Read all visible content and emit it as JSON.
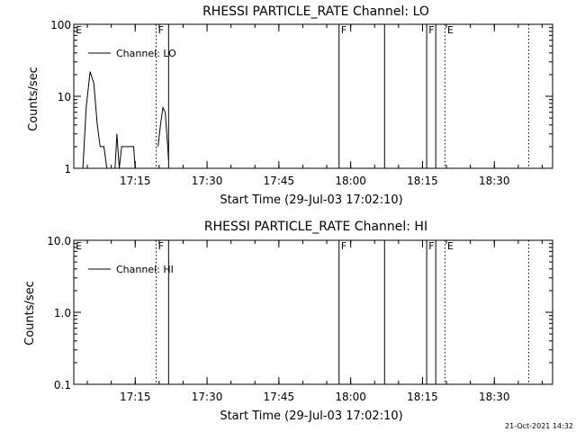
{
  "timestamp": "21-Oct-2021 14:32",
  "chart_data": [
    {
      "type": "line",
      "title": "RHESSI PARTICLE_RATE Channel: LO",
      "xlabel": "Start Time (29-Jul-03 17:02:10)",
      "ylabel": "Counts/sec",
      "yscale": "log",
      "ylim": [
        1,
        100
      ],
      "yticks": [
        1,
        10,
        100
      ],
      "ytick_labels": [
        "1",
        "10",
        "100"
      ],
      "xlim_minutes": [
        0,
        100
      ],
      "xticks_minutes": [
        12.83,
        27.83,
        42.83,
        57.83,
        72.83,
        87.83
      ],
      "xtick_labels": [
        "17:15",
        "17:30",
        "17:45",
        "18:00",
        "18:15",
        "18:30"
      ],
      "legend": {
        "label": "Channel: LO",
        "position": "top-left"
      },
      "markers": [
        {
          "label": "E",
          "x": 0,
          "style": "solid",
          "show_label": true
        },
        {
          "label": "F",
          "x": 17.2,
          "style": "dotted",
          "show_label": true
        },
        {
          "label": "",
          "x": 19.8,
          "style": "solid",
          "show_label": false
        },
        {
          "label": "F",
          "x": 55.4,
          "style": "solid",
          "show_label": false
        },
        {
          "label": "",
          "x": 64.9,
          "style": "solid",
          "show_label": false
        },
        {
          "label": "F",
          "x": 73.7,
          "style": "solid",
          "show_label": false
        },
        {
          "label": "",
          "x": 75.6,
          "style": "solid",
          "show_label": false
        },
        {
          "label": "E",
          "x": 77.5,
          "style": "dotted",
          "show_label": true
        },
        {
          "label": "",
          "x": 95.0,
          "style": "dotted",
          "show_label": false
        }
      ],
      "marker_labels": [
        {
          "text": "E",
          "x": 0.4
        },
        {
          "text": "F",
          "x": 17.6
        },
        {
          "text": "F",
          "x": 55.8
        },
        {
          "text": "F",
          "x": 74.1
        },
        {
          "text": "E",
          "x": 78.0
        }
      ],
      "series": [
        {
          "name": "Channel: LO",
          "segments": [
            [
              [
                1.9,
                1
              ],
              [
                2.6,
                7
              ],
              [
                3.4,
                22
              ],
              [
                4.2,
                15
              ],
              [
                4.9,
                4
              ],
              [
                5.5,
                2
              ],
              [
                6.3,
                2
              ],
              [
                6.9,
                1
              ]
            ],
            [
              [
                8.6,
                1
              ],
              [
                9.0,
                3
              ],
              [
                9.5,
                1
              ],
              [
                10.0,
                2
              ],
              [
                12.5,
                2
              ],
              [
                12.8,
                1
              ]
            ],
            [
              [
                17.6,
                2
              ],
              [
                18.1,
                4
              ],
              [
                18.6,
                7
              ],
              [
                19.1,
                6
              ],
              [
                19.6,
                2
              ],
              [
                19.8,
                1.3
              ]
            ]
          ]
        }
      ]
    },
    {
      "type": "line",
      "title": "RHESSI PARTICLE_RATE Channel: HI",
      "xlabel": "Start Time (29-Jul-03 17:02:10)",
      "ylabel": "Counts/sec",
      "yscale": "log",
      "ylim": [
        0.1,
        10
      ],
      "yticks": [
        0.1,
        1,
        10
      ],
      "ytick_labels": [
        "0.1",
        "1.0",
        "10.0"
      ],
      "xlim_minutes": [
        0,
        100
      ],
      "xticks_minutes": [
        12.83,
        27.83,
        42.83,
        57.83,
        72.83,
        87.83
      ],
      "xtick_labels": [
        "17:15",
        "17:30",
        "17:45",
        "18:00",
        "18:15",
        "18:30"
      ],
      "legend": {
        "label": "Channel: HI",
        "position": "top-left"
      },
      "markers": [
        {
          "label": "E",
          "x": 0,
          "style": "solid",
          "show_label": true
        },
        {
          "label": "F",
          "x": 17.2,
          "style": "dotted",
          "show_label": true
        },
        {
          "label": "",
          "x": 19.8,
          "style": "solid",
          "show_label": false
        },
        {
          "label": "F",
          "x": 55.4,
          "style": "solid",
          "show_label": false
        },
        {
          "label": "",
          "x": 64.9,
          "style": "solid",
          "show_label": false
        },
        {
          "label": "F",
          "x": 73.7,
          "style": "solid",
          "show_label": false
        },
        {
          "label": "",
          "x": 75.6,
          "style": "solid",
          "show_label": false
        },
        {
          "label": "E",
          "x": 77.5,
          "style": "dotted",
          "show_label": true
        },
        {
          "label": "",
          "x": 95.0,
          "style": "dotted",
          "show_label": false
        }
      ],
      "marker_labels": [
        {
          "text": "E",
          "x": 0.4
        },
        {
          "text": "F",
          "x": 17.6
        },
        {
          "text": "F",
          "x": 55.8
        },
        {
          "text": "F",
          "x": 74.1
        },
        {
          "text": "E",
          "x": 78.0
        }
      ],
      "series": [
        {
          "name": "Channel: HI",
          "segments": []
        }
      ]
    }
  ]
}
